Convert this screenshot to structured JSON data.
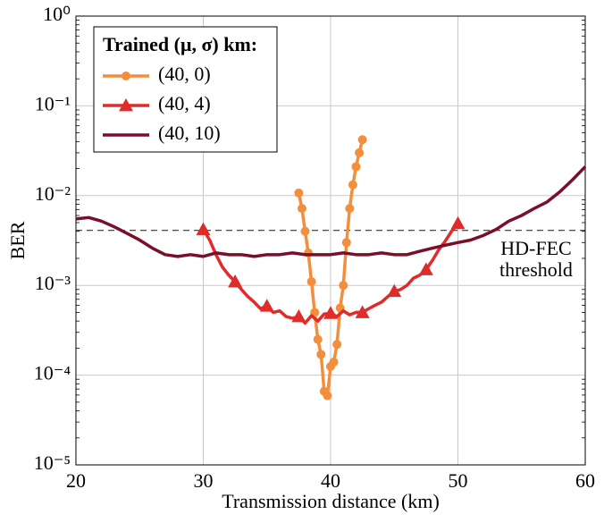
{
  "chart_data": {
    "type": "line",
    "y_scale": "log",
    "grid": true,
    "legend_position": "upper left",
    "x_label": "Transmission distance (km)",
    "y_label": "BER",
    "legend_title": "Trained (μ, σ) km:",
    "xlim": [
      20,
      60
    ],
    "xticks": [
      20,
      30,
      40,
      50,
      60
    ],
    "ylim": [
      1e-05,
      1
    ],
    "yticks": [
      {
        "value": 1e-05,
        "label": "10⁻⁵"
      },
      {
        "value": 0.0001,
        "label": "10⁻⁴"
      },
      {
        "value": 0.001,
        "label": "10⁻³"
      },
      {
        "value": 0.01,
        "label": "10⁻²"
      },
      {
        "value": 0.1,
        "label": "10⁻¹"
      },
      {
        "value": 1,
        "label": "10⁰"
      }
    ],
    "threshold": 0.0041,
    "threshold_label": [
      "HD-FEC",
      "threshold"
    ],
    "series": [
      {
        "name": "(40, 0)",
        "color": "#f28e3c",
        "marker": "circle",
        "x": [
          37.5,
          37.75,
          38,
          38.25,
          38.5,
          38.75,
          39,
          39.25,
          39.5,
          39.75,
          40,
          40.25,
          40.5,
          40.75,
          41,
          41.25,
          41.5,
          41.75,
          42,
          42.25,
          42.5
        ],
        "values": [
          0.0107,
          0.0072,
          0.004,
          0.0023,
          0.0011,
          0.0005,
          0.00025,
          0.00017,
          6.6e-05,
          5.9e-05,
          0.000125,
          0.00014,
          0.00022,
          0.00056,
          0.001,
          0.003,
          0.0072,
          0.0132,
          0.021,
          0.03,
          0.042
        ]
      },
      {
        "name": "(40, 4)",
        "color": "#e02b2b",
        "marker": "triangle",
        "x": [
          30,
          30.5,
          31,
          31.5,
          32,
          32.5,
          33,
          33.5,
          34,
          34.5,
          35,
          35.5,
          36,
          36.5,
          37,
          37.5,
          38,
          38.5,
          39,
          39.5,
          40,
          40.5,
          41,
          41.5,
          42,
          42.5,
          43,
          43.5,
          44,
          44.5,
          45,
          45.5,
          46,
          46.5,
          47,
          47.5,
          48,
          48.5,
          49,
          49.5,
          50
        ],
        "values": [
          0.0042,
          0.0032,
          0.0022,
          0.0016,
          0.0013,
          0.0011,
          0.0009,
          0.00075,
          0.00065,
          0.00055,
          0.00059,
          0.0005,
          0.00052,
          0.00045,
          0.00043,
          0.00045,
          0.00038,
          0.00046,
          0.0004,
          0.00048,
          0.00049,
          0.00045,
          0.00052,
          0.00047,
          0.0005,
          0.0005,
          0.00055,
          0.0006,
          0.00065,
          0.00075,
          0.00086,
          0.0009,
          0.001,
          0.0012,
          0.0013,
          0.0015,
          0.0019,
          0.0025,
          0.0031,
          0.004,
          0.0049
        ]
      },
      {
        "name": "(40, 10)",
        "color": "#7a0f2a",
        "marker": "none",
        "x": [
          20,
          21,
          22,
          23,
          24,
          25,
          26,
          27,
          28,
          29,
          30,
          31,
          32,
          33,
          34,
          35,
          36,
          37,
          38,
          39,
          40,
          41,
          42,
          43,
          44,
          45,
          46,
          47,
          48,
          49,
          50,
          51,
          52,
          53,
          54,
          55,
          56,
          57,
          58,
          59,
          60
        ],
        "values": [
          0.0055,
          0.0057,
          0.0052,
          0.0045,
          0.0038,
          0.0032,
          0.0026,
          0.0022,
          0.0021,
          0.0022,
          0.0021,
          0.0023,
          0.0022,
          0.0022,
          0.0021,
          0.0022,
          0.0022,
          0.0023,
          0.0022,
          0.0022,
          0.0022,
          0.0023,
          0.0022,
          0.0022,
          0.0023,
          0.0022,
          0.0022,
          0.0024,
          0.0026,
          0.0028,
          0.003,
          0.0032,
          0.0036,
          0.0042,
          0.0052,
          0.006,
          0.0072,
          0.0085,
          0.011,
          0.015,
          0.021
        ]
      }
    ]
  }
}
